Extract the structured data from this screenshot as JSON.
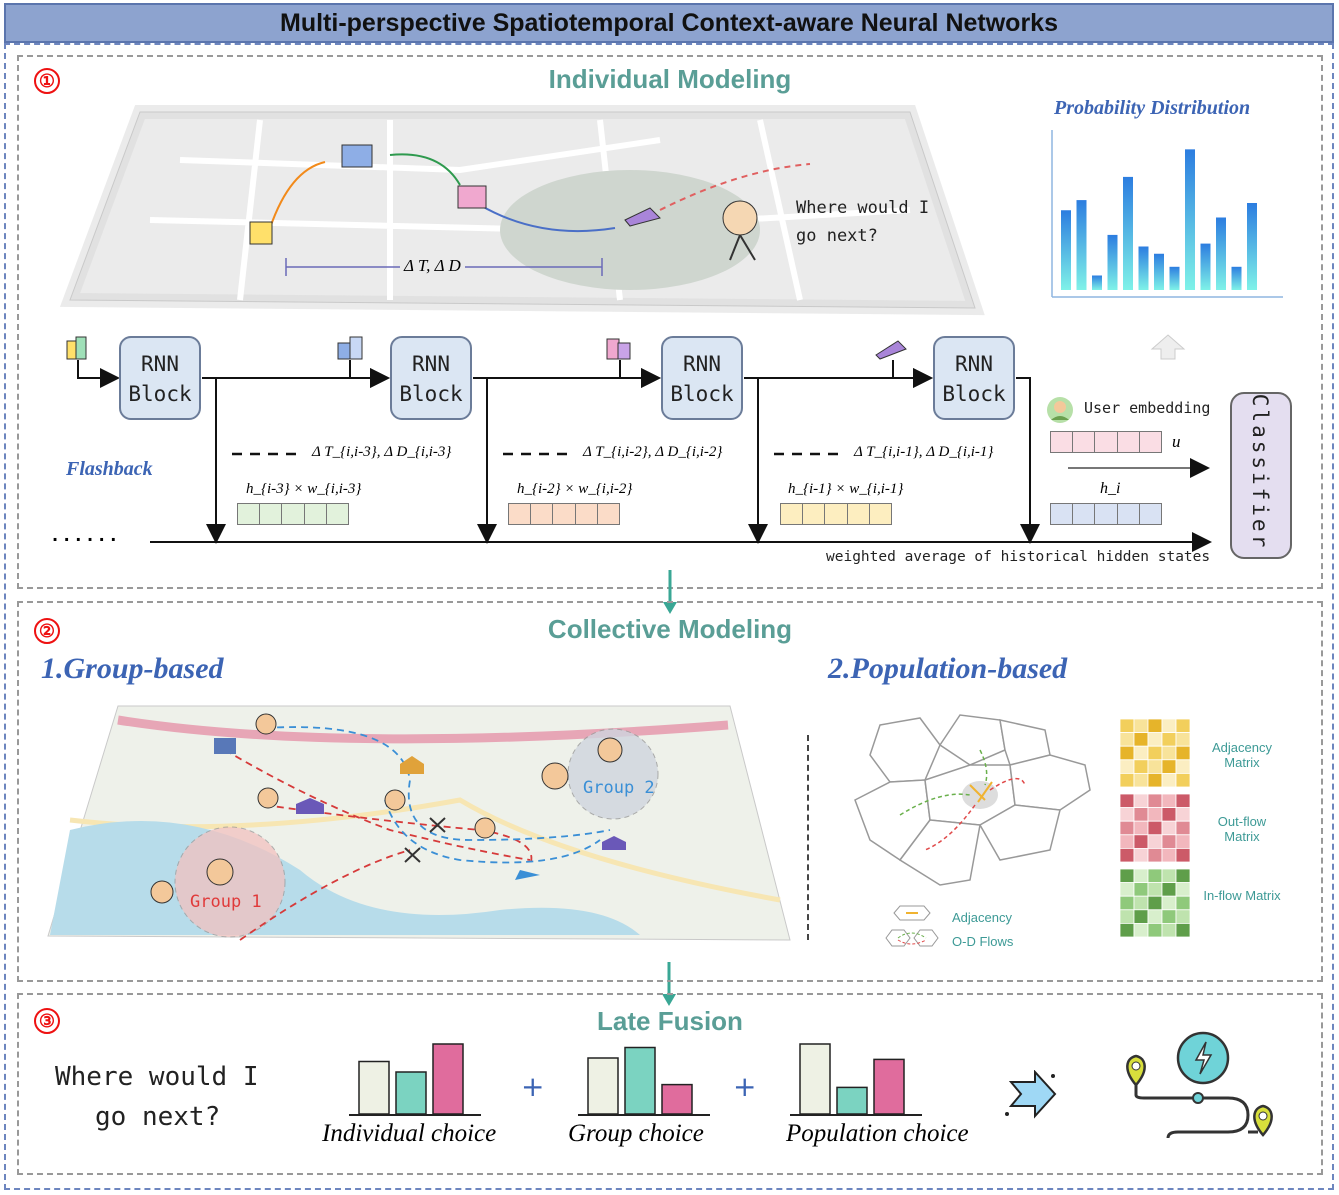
{
  "title": "Multi-perspective Spatiotemporal Context-aware Neural Networks",
  "section1": {
    "number": "①",
    "title": "Individual Modeling",
    "map_question": "Where would I go next?",
    "map_interval": "Δ T, Δ D",
    "probability_title": "Probability Distribution",
    "flashback": "Flashback",
    "rnn_label_line1": "RNN",
    "rnn_label_line2": "Block",
    "interval_labels": [
      "Δ T_{i,i-3}, Δ D_{i,i-3}",
      "Δ T_{i,i-2}, Δ D_{i,i-2}",
      "Δ T_{i,i-1}, Δ D_{i,i-1}"
    ],
    "weighted_labels": [
      "h_{i-3} × w_{i,i-3}",
      "h_{i-2} × w_{i,i-2}",
      "h_{i-1} × w_{i,i-1}"
    ],
    "dots": "· · · · · ·",
    "user_embedding": "User embedding",
    "u_symbol": "u",
    "h_symbol": "h_i",
    "classifier": "Classifier",
    "weighted_avg": "weighted average of historical hidden states"
  },
  "section2": {
    "number": "②",
    "title": "Collective Modeling",
    "group_title": "1.Group-based",
    "population_title": "2.Population-based",
    "group1": "Group 1",
    "group2": "Group 2",
    "adjacency_matrix": "Adjacency Matrix",
    "outflow_matrix": "Out-flow Matrix",
    "inflow_matrix": "In-flow Matrix",
    "legend_adjacency": "Adjacency",
    "legend_od": "O-D Flows"
  },
  "section3": {
    "number": "③",
    "title": "Late Fusion",
    "question_line1": "Where would I",
    "question_line2": "go next?",
    "plus": "+",
    "individual_choice": "Individual choice",
    "group_choice": "Group choice",
    "population_choice": "Population choice"
  },
  "prob_bars": [
    0.55,
    0.62,
    0.1,
    0.38,
    0.78,
    0.3,
    0.25,
    0.16,
    0.97,
    0.32,
    0.5,
    0.16,
    0.6
  ],
  "fusion_bars": {
    "individual": [
      0.75,
      0.6,
      1.0
    ],
    "group": [
      0.8,
      0.95,
      0.42
    ],
    "population": [
      1.0,
      0.38,
      0.78
    ]
  },
  "colors": {
    "cream": "#eef1e4",
    "teal": "#7bd3c1",
    "pink": "#e06c9d",
    "accent": "#5a9e96"
  }
}
